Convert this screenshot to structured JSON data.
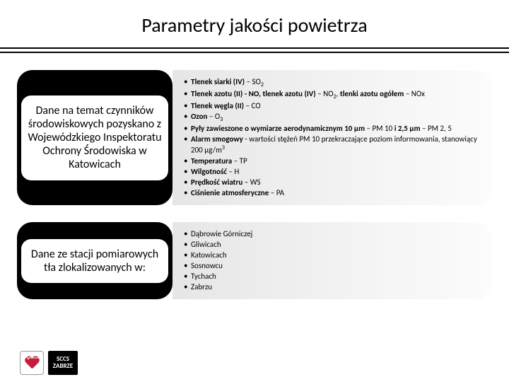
{
  "title": "Parametry jakości powietrza",
  "rows": [
    {
      "leftLabel": "Dane na temat czynników środowiskowych pozyskano z Wojewódzkiego Inspektoratu Ochrony Środowiska w Katowicach",
      "bullets": [
        "<b>Tlenek siarki (IV)</b> – SO<sub>2</sub>",
        "<b>Tlenek azotu (II) - NO, tlenek azotu (IV)</b> – NO<sub>2</sub>, <b>tlenki azotu ogółem</b> – NOx",
        "<b>Tlenek węgla (II)</b> – CO",
        "<b>Ozon</b> – O<sub>3</sub>",
        "<b>Pyły zawieszone o wymiarze aerodynamicznym 10 μm</b> – PM 10 <b>i 2,5 μm</b> – PM 2, 5",
        "<b>Alarm smogowy</b> - wartości stężeń PM 10 przekraczające poziom informowania, stanowiący 200 μg/m<sup>3</sup>",
        "<b>Temperatura</b> – TP",
        "<b>Wilgotność</b> – H",
        "<b>Prędkość wiatru</b> – WS",
        "<b>Ciśnienie atmosferyczne</b> – PA"
      ]
    },
    {
      "leftLabel": "Dane ze stacji pomiarowych tła zlokalizowanych w:",
      "bullets": [
        "Dąbrowie Górniczej",
        "Gliwicach",
        "Katowicach",
        "Sosnowcu",
        "Tychach",
        "Zabrzu"
      ]
    }
  ],
  "logo": {
    "text1": "SCCS",
    "text2": "ZABRZE"
  },
  "colors": {
    "heart": "#c41e3a",
    "black": "#000000",
    "bgGradientStart": "#e6e6e6",
    "bgGradientEnd": "#fcfcfc"
  }
}
